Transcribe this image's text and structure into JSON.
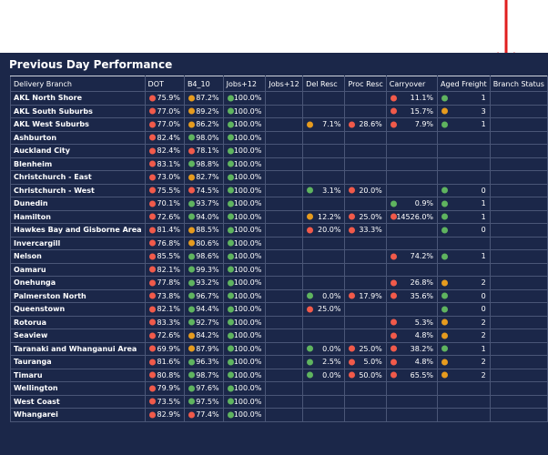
{
  "title": "Previous Day Performance",
  "colors": {
    "red": "#f15a4a",
    "orange": "#e69b1e",
    "green": "#5fb45f"
  },
  "columns": [
    "Delivery Branch",
    "DOT",
    "B4_10",
    "Jobs+12",
    "Jobs+12",
    "Del Resc",
    "Proc Resc",
    "Carryover",
    "Aged Freight",
    "Branch Status"
  ],
  "rows": [
    {
      "branch": "AKL North Shore",
      "cells": [
        [
          "red",
          "75.9%"
        ],
        [
          "orange",
          "87.2%"
        ],
        [
          "green",
          "100.0%"
        ],
        null,
        null,
        null,
        [
          "red",
          "11.1%"
        ],
        [
          "green",
          "1"
        ],
        null
      ]
    },
    {
      "branch": "AKL South Suburbs",
      "cells": [
        [
          "red",
          "77.0%"
        ],
        [
          "orange",
          "89.2%"
        ],
        [
          "green",
          "100.0%"
        ],
        null,
        null,
        null,
        [
          "red",
          "15.7%"
        ],
        [
          "orange",
          "3"
        ],
        null
      ]
    },
    {
      "branch": "AKL West Suburbs",
      "cells": [
        [
          "red",
          "77.0%"
        ],
        [
          "orange",
          "86.2%"
        ],
        [
          "green",
          "100.0%"
        ],
        null,
        [
          "orange",
          "7.1%"
        ],
        [
          "red",
          "28.6%"
        ],
        [
          "red",
          "7.9%"
        ],
        [
          "green",
          "1"
        ],
        null
      ]
    },
    {
      "branch": "Ashburton",
      "cells": [
        [
          "red",
          "82.4%"
        ],
        [
          "green",
          "98.0%"
        ],
        [
          "green",
          "100.0%"
        ],
        null,
        null,
        null,
        null,
        null,
        null
      ]
    },
    {
      "branch": "Auckland City",
      "cells": [
        [
          "red",
          "82.4%"
        ],
        [
          "red",
          "78.1%"
        ],
        [
          "green",
          "100.0%"
        ],
        null,
        null,
        null,
        null,
        null,
        null
      ]
    },
    {
      "branch": "Blenheim",
      "cells": [
        [
          "red",
          "83.1%"
        ],
        [
          "green",
          "98.8%"
        ],
        [
          "green",
          "100.0%"
        ],
        null,
        null,
        null,
        null,
        null,
        null
      ]
    },
    {
      "branch": "Christchurch - East",
      "cells": [
        [
          "red",
          "73.0%"
        ],
        [
          "orange",
          "82.7%"
        ],
        [
          "green",
          "100.0%"
        ],
        null,
        null,
        null,
        null,
        null,
        null
      ]
    },
    {
      "branch": "Christchurch - West",
      "cells": [
        [
          "red",
          "75.5%"
        ],
        [
          "red",
          "74.5%"
        ],
        [
          "green",
          "100.0%"
        ],
        null,
        [
          "green",
          "3.1%"
        ],
        [
          "red",
          "20.0%"
        ],
        null,
        [
          "green",
          "0"
        ],
        null
      ]
    },
    {
      "branch": "Dunedin",
      "cells": [
        [
          "red",
          "70.1%"
        ],
        [
          "green",
          "93.7%"
        ],
        [
          "green",
          "100.0%"
        ],
        null,
        null,
        null,
        [
          "green",
          "0.9%"
        ],
        [
          "green",
          "1"
        ],
        null
      ]
    },
    {
      "branch": "Hamilton",
      "cells": [
        [
          "red",
          "72.6%"
        ],
        [
          "green",
          "94.0%"
        ],
        [
          "green",
          "100.0%"
        ],
        null,
        [
          "orange",
          "12.2%"
        ],
        [
          "red",
          "25.0%"
        ],
        [
          "red",
          "14526.0%"
        ],
        [
          "green",
          "1"
        ],
        null
      ]
    },
    {
      "branch": "Hawkes Bay and Gisborne Area",
      "cells": [
        [
          "red",
          "81.4%"
        ],
        [
          "orange",
          "88.5%"
        ],
        [
          "green",
          "100.0%"
        ],
        null,
        [
          "red",
          "20.0%"
        ],
        [
          "red",
          "33.3%"
        ],
        null,
        [
          "green",
          "0"
        ],
        null
      ]
    },
    {
      "branch": "Invercargill",
      "cells": [
        [
          "red",
          "76.8%"
        ],
        [
          "orange",
          "80.6%"
        ],
        [
          "green",
          "100.0%"
        ],
        null,
        null,
        null,
        null,
        null,
        null
      ]
    },
    {
      "branch": "Nelson",
      "cells": [
        [
          "red",
          "85.5%"
        ],
        [
          "green",
          "98.6%"
        ],
        [
          "green",
          "100.0%"
        ],
        null,
        null,
        null,
        [
          "red",
          "74.2%"
        ],
        [
          "green",
          "1"
        ],
        null
      ]
    },
    {
      "branch": "Oamaru",
      "cells": [
        [
          "red",
          "82.1%"
        ],
        [
          "green",
          "99.3%"
        ],
        [
          "green",
          "100.0%"
        ],
        null,
        null,
        null,
        null,
        null,
        null
      ]
    },
    {
      "branch": "Onehunga",
      "cells": [
        [
          "red",
          "77.8%"
        ],
        [
          "green",
          "93.2%"
        ],
        [
          "green",
          "100.0%"
        ],
        null,
        null,
        null,
        [
          "red",
          "26.8%"
        ],
        [
          "orange",
          "2"
        ],
        null
      ]
    },
    {
      "branch": "Palmerston North",
      "cells": [
        [
          "red",
          "73.8%"
        ],
        [
          "green",
          "96.7%"
        ],
        [
          "green",
          "100.0%"
        ],
        null,
        [
          "green",
          "0.0%"
        ],
        [
          "red",
          "17.9%"
        ],
        [
          "red",
          "35.6%"
        ],
        [
          "green",
          "0"
        ],
        null
      ]
    },
    {
      "branch": "Queenstown",
      "cells": [
        [
          "red",
          "82.1%"
        ],
        [
          "green",
          "94.4%"
        ],
        [
          "green",
          "100.0%"
        ],
        null,
        [
          "red",
          "25.0%"
        ],
        null,
        null,
        [
          "green",
          "0"
        ],
        null
      ]
    },
    {
      "branch": "Rotorua",
      "cells": [
        [
          "red",
          "83.3%"
        ],
        [
          "green",
          "92.7%"
        ],
        [
          "green",
          "100.0%"
        ],
        null,
        null,
        null,
        [
          "red",
          "5.3%"
        ],
        [
          "orange",
          "2"
        ],
        null
      ]
    },
    {
      "branch": "Seaview",
      "cells": [
        [
          "red",
          "72.6%"
        ],
        [
          "orange",
          "84.2%"
        ],
        [
          "green",
          "100.0%"
        ],
        null,
        null,
        null,
        [
          "red",
          "4.8%"
        ],
        [
          "orange",
          "2"
        ],
        null
      ]
    },
    {
      "branch": "Taranaki and Whanganui Area",
      "cells": [
        [
          "red",
          "69.9%"
        ],
        [
          "orange",
          "87.9%"
        ],
        [
          "green",
          "100.0%"
        ],
        null,
        [
          "green",
          "0.0%"
        ],
        [
          "red",
          "25.0%"
        ],
        [
          "red",
          "38.2%"
        ],
        [
          "green",
          "1"
        ],
        null
      ]
    },
    {
      "branch": "Tauranga",
      "cells": [
        [
          "red",
          "81.6%"
        ],
        [
          "green",
          "96.3%"
        ],
        [
          "green",
          "100.0%"
        ],
        null,
        [
          "green",
          "2.5%"
        ],
        [
          "red",
          "5.0%"
        ],
        [
          "red",
          "4.8%"
        ],
        [
          "orange",
          "2"
        ],
        null
      ]
    },
    {
      "branch": "Timaru",
      "cells": [
        [
          "red",
          "80.8%"
        ],
        [
          "green",
          "98.7%"
        ],
        [
          "green",
          "100.0%"
        ],
        null,
        [
          "green",
          "0.0%"
        ],
        [
          "red",
          "50.0%"
        ],
        [
          "red",
          "65.5%"
        ],
        [
          "orange",
          "2"
        ],
        null
      ]
    },
    {
      "branch": "Wellington",
      "cells": [
        [
          "red",
          "79.9%"
        ],
        [
          "green",
          "97.6%"
        ],
        [
          "green",
          "100.0%"
        ],
        null,
        null,
        null,
        null,
        null,
        null
      ]
    },
    {
      "branch": "West Coast",
      "cells": [
        [
          "red",
          "73.5%"
        ],
        [
          "green",
          "97.5%"
        ],
        [
          "green",
          "100.0%"
        ],
        null,
        null,
        null,
        null,
        null,
        null
      ]
    },
    {
      "branch": "Whangarei",
      "cells": [
        [
          "red",
          "82.9%"
        ],
        [
          "red",
          "77.4%"
        ],
        [
          "green",
          "100.0%"
        ],
        null,
        null,
        null,
        null,
        null,
        null
      ]
    }
  ]
}
